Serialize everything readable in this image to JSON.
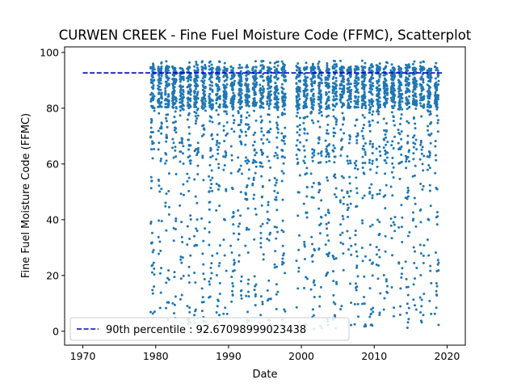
{
  "chart_data": {
    "type": "scatter",
    "title": "CURWEN CREEK - Fine Fuel Moisture Code (FFMC), Scatterplot",
    "xlabel": "Date",
    "ylabel": "Fine Fuel Moisture Code (FFMC)",
    "xlim": [
      1967.5,
      2022.5
    ],
    "ylim": [
      -5,
      102
    ],
    "x_ticks": [
      1970,
      1980,
      1990,
      2000,
      2010,
      2020
    ],
    "y_ticks": [
      0,
      20,
      40,
      60,
      80,
      100
    ],
    "grid": false,
    "legend": {
      "location": "lower-left",
      "entries": [
        {
          "label": "90th percentile : 92.67098999023438"
        }
      ]
    },
    "reference_line": {
      "name": "90th percentile",
      "y": 92.67098999023438,
      "x_range": [
        1970,
        2019.5
      ],
      "style": "dashed",
      "color": "#0000cc"
    },
    "series": [
      {
        "marker_color": "#1f77b4",
        "season_years": [
          1979,
          1980,
          1981,
          1982,
          1983,
          1984,
          1985,
          1986,
          1987,
          1988,
          1989,
          1990,
          1991,
          1992,
          1993,
          1994,
          1995,
          1996,
          1997,
          1999,
          2000,
          2001,
          2002,
          2003,
          2004,
          2005,
          2006,
          2007,
          2008,
          2009,
          2010,
          2011,
          2012,
          2013,
          2014,
          2015,
          2016,
          2017,
          2018
        ],
        "season_extent": [
          0.3,
          0.85
        ],
        "typical_range": [
          80,
          95
        ],
        "min": 0.5,
        "max": 97
      }
    ]
  }
}
